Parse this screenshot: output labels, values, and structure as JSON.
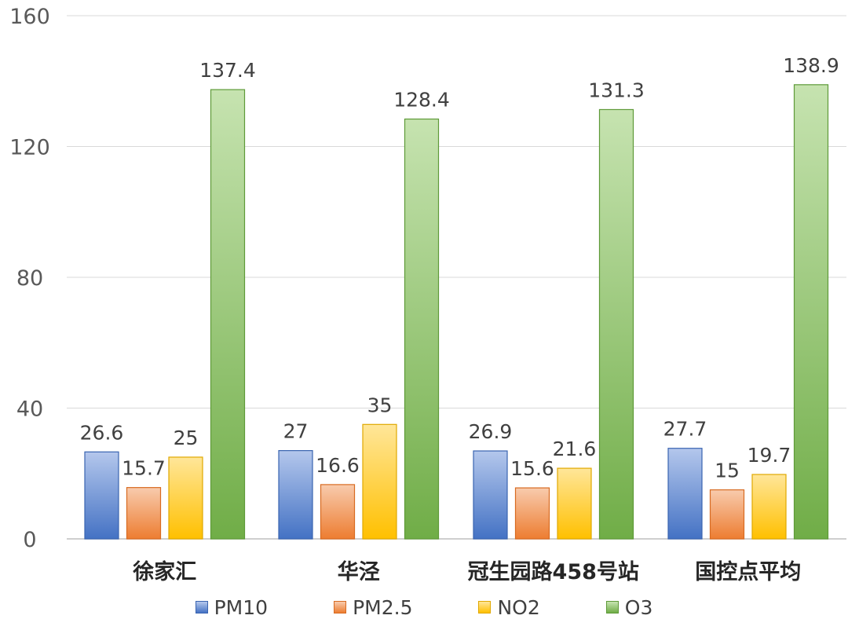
{
  "chart_data": {
    "type": "bar",
    "categories": [
      "徐家汇",
      "华泾",
      "冠生园路458号站",
      "国控点平均"
    ],
    "series": [
      {
        "name": "PM10",
        "values": [
          26.6,
          27,
          26.9,
          27.7
        ],
        "labels": [
          "26.6",
          "27",
          "26.9",
          "27.7"
        ]
      },
      {
        "name": "PM2.5",
        "values": [
          15.7,
          16.6,
          15.6,
          15
        ],
        "labels": [
          "15.7",
          "16.6",
          "15.6",
          "15"
        ]
      },
      {
        "name": "NO2",
        "values": [
          25,
          35,
          21.6,
          19.7
        ],
        "labels": [
          "25",
          "35",
          "21.6",
          "19.7"
        ]
      },
      {
        "name": "O3",
        "values": [
          137.4,
          128.4,
          131.3,
          138.9
        ],
        "labels": [
          "137.4",
          "128.4",
          "131.3",
          "138.9"
        ]
      }
    ],
    "yticks": [
      "0",
      "40",
      "80",
      "120",
      "160"
    ],
    "ylim": [
      0,
      160
    ],
    "grid": true,
    "legend_position": "bottom",
    "colors": {
      "PM10": {
        "top": "#b4c7ec",
        "bottom": "#4472c4",
        "edge": "#3a64b0"
      },
      "PM2.5": {
        "top": "#f8cbad",
        "bottom": "#ed7d31",
        "edge": "#d86b22"
      },
      "NO2": {
        "top": "#ffe699",
        "bottom": "#ffc000",
        "edge": "#e0a800"
      },
      "O3": {
        "top": "#c6e3b0",
        "bottom": "#70ad47",
        "edge": "#5e9a38"
      }
    },
    "gridline_color": "#d9d9d9",
    "axis_color": "#bfbfbf",
    "tick_label_color": "#595959",
    "category_label_color": "#262626",
    "data_label_color": "#404040"
  }
}
